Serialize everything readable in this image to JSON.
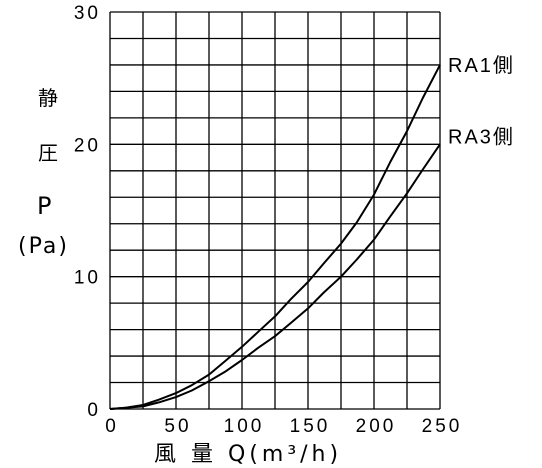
{
  "chart_data": {
    "type": "line",
    "xlabel": "風 量 Q(m³/h)",
    "ylabel_lines": [
      "静",
      "圧",
      "P",
      "(Pa)"
    ],
    "xlim": [
      0,
      250
    ],
    "ylim": [
      0,
      30
    ],
    "x_ticks": [
      0,
      50,
      100,
      150,
      200,
      250
    ],
    "y_ticks": [
      0,
      10,
      20,
      30
    ],
    "x_tick_labels": [
      "0",
      "50",
      "100",
      "150",
      "200",
      "250"
    ],
    "y_tick_labels": [
      "0",
      "10",
      "20",
      "30"
    ],
    "grid": true,
    "grid_x_step": 25,
    "grid_y_step": 2,
    "series": [
      {
        "name": "RA1側",
        "x": [
          0,
          12,
          25,
          37,
          50,
          62,
          75,
          87,
          100,
          112,
          125,
          137,
          150,
          162,
          175,
          187,
          200,
          212,
          225,
          237,
          250
        ],
        "y": [
          0,
          0.1,
          0.3,
          0.7,
          1.2,
          1.8,
          2.6,
          3.6,
          4.7,
          5.8,
          7.0,
          8.3,
          9.6,
          11.0,
          12.5,
          14.1,
          16.2,
          18.6,
          21.0,
          23.5,
          26.0
        ]
      },
      {
        "name": "RA3側",
        "x": [
          0,
          12,
          25,
          37,
          50,
          62,
          75,
          87,
          100,
          112,
          125,
          137,
          150,
          162,
          175,
          187,
          200,
          212,
          225,
          237,
          250
        ],
        "y": [
          0,
          0.1,
          0.2,
          0.5,
          0.9,
          1.4,
          2.1,
          2.8,
          3.7,
          4.6,
          5.5,
          6.5,
          7.6,
          8.8,
          10.0,
          11.3,
          12.8,
          14.5,
          16.3,
          18.1,
          20.0
        ]
      }
    ]
  }
}
